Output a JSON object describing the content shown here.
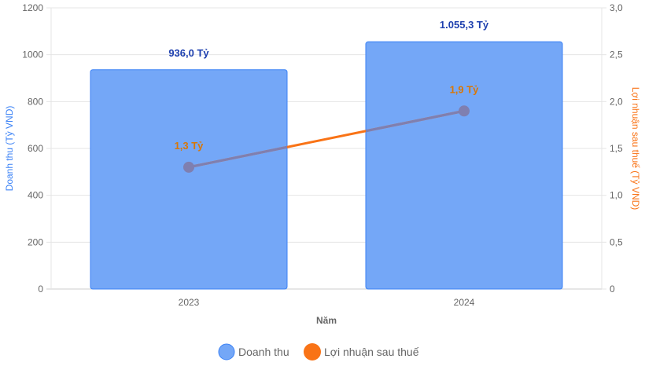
{
  "chart_data": {
    "type": "bar",
    "categories": [
      "2023",
      "2024"
    ],
    "xlabel": "Năm",
    "series": [
      {
        "name": "Doanh thu",
        "type": "bar",
        "axis": "left",
        "values": [
          936.0,
          1055.3
        ],
        "labels": [
          "936,0 Tỷ",
          "1.055,3 Tỷ"
        ],
        "color": "#74a7f7",
        "border": "#3b82f6",
        "label_color": "#1e40af"
      },
      {
        "name": "Lợi nhuận sau thuế",
        "type": "line",
        "axis": "right",
        "values": [
          1.3,
          1.9
        ],
        "labels": [
          "1,3 Tỷ",
          "1,9 Tỷ"
        ],
        "color": "#f97316",
        "label_color": "#d97706"
      }
    ],
    "y_left": {
      "label": "Doanh thu (Tỷ VND)",
      "range": [
        0,
        1200
      ],
      "ticks": [
        "0",
        "200",
        "400",
        "600",
        "800",
        "1000",
        "1200"
      ],
      "color": "#3b82f6"
    },
    "y_right": {
      "label": "Lợi nhuận sau thuế (Tỷ VND)",
      "range": [
        0,
        3
      ],
      "ticks": [
        "0",
        "0,5",
        "1,0",
        "1,5",
        "2,0",
        "2,5",
        "3,0"
      ],
      "color": "#f97316"
    },
    "grid": true,
    "legend": "bottom"
  }
}
